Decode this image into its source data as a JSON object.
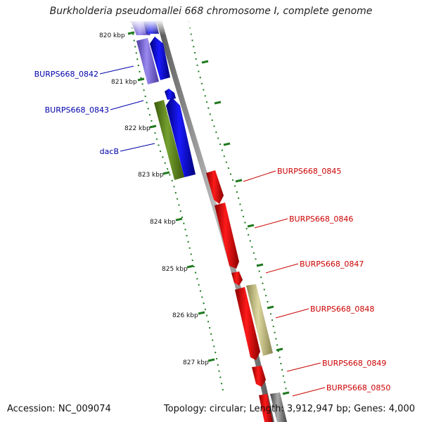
{
  "title": "Burkholderia pseudomallei 668 chromosome I, complete genome",
  "footer": {
    "accession": "Accession: NC_009074",
    "stats": "Topology: circular; Length: 3,912,947 bp; Genes: 4,000"
  },
  "scale": {
    "unit": "kbp",
    "ticks": [
      {
        "label": "820 kbp"
      },
      {
        "label": "821 kbp"
      },
      {
        "label": "822 kbp"
      },
      {
        "label": "823 kbp"
      },
      {
        "label": "824 kbp"
      },
      {
        "label": "825 kbp"
      },
      {
        "label": "826 kbp"
      },
      {
        "label": "827 kbp"
      }
    ]
  },
  "colors": {
    "forward_gene": "#1010ee",
    "reverse_gene": "#ee1010",
    "purple_gene": "#7a6ad8",
    "green_gene": "#5e8a1e",
    "khaki_gene": "#bdb77a",
    "gray_gene": "#777777",
    "tick_green": "#1f7a1f",
    "backbone": "#8a8a8a",
    "left_label": "#0000aa",
    "right_label": "#cc0000"
  },
  "labels_left": [
    {
      "name": "BURPS668_0842"
    },
    {
      "name": "BURPS668_0843"
    },
    {
      "name": "dacB"
    }
  ],
  "labels_right": [
    {
      "name": "BURPS668_0845"
    },
    {
      "name": "BURPS668_0846"
    },
    {
      "name": "BURPS668_0847"
    },
    {
      "name": "BURPS668_0848"
    },
    {
      "name": "BURPS668_0849"
    },
    {
      "name": "BURPS668_0850"
    }
  ]
}
